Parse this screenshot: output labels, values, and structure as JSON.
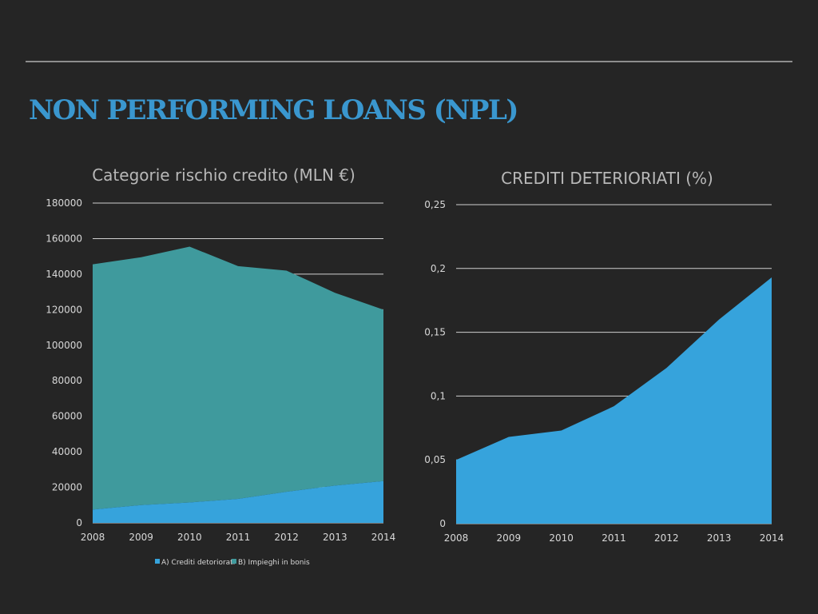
{
  "slide": {
    "title": "NON PERFORMING LOANS (NPL)"
  },
  "colors": {
    "background": "#252525",
    "title": "#3a97cf",
    "series_a": "#36a3dc",
    "series_b": "#3f9a9d"
  },
  "chart_data": [
    {
      "type": "area",
      "stacked": true,
      "title": "Categorie rischio credito (MLN €)",
      "x": [
        "2008",
        "2009",
        "2010",
        "2011",
        "2012",
        "2013",
        "2014"
      ],
      "series": [
        {
          "name": "A) Crediti detoriorati",
          "values": [
            7500,
            10000,
            11500,
            13500,
            17500,
            21000,
            23500
          ]
        },
        {
          "name": "B) Impieghi in bonis",
          "values": [
            138000,
            139500,
            144000,
            131000,
            124500,
            108500,
            96500
          ]
        }
      ],
      "ylim": [
        0,
        180000
      ],
      "yticks": [
        "0",
        "20000",
        "40000",
        "60000",
        "80000",
        "100000",
        "120000",
        "140000",
        "160000",
        "180000"
      ],
      "grid": true,
      "legend": "bottom"
    },
    {
      "type": "area",
      "title": "CREDITI DETERIORIATI (%)",
      "x": [
        "2008",
        "2009",
        "2010",
        "2011",
        "2012",
        "2013",
        "2014"
      ],
      "values": [
        0.05,
        0.068,
        0.073,
        0.092,
        0.122,
        0.16,
        0.193
      ],
      "ylim": [
        0,
        0.25
      ],
      "yticks": [
        "0",
        "0,05",
        "0,1",
        "0,15",
        "0,2",
        "0,25"
      ],
      "grid": true
    }
  ]
}
